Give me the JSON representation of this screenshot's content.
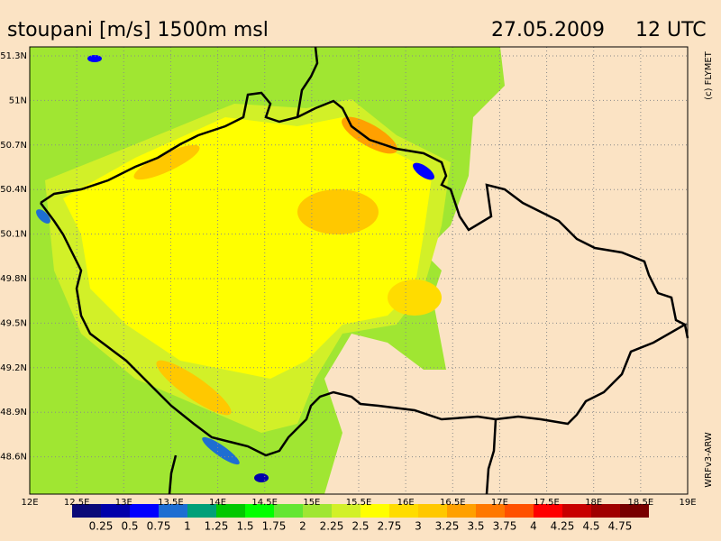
{
  "header": {
    "title": "stoupani [m/s] 1500m msl",
    "date": "27.05.2009",
    "time": "12 UTC",
    "copyright": "(c) FLYMET",
    "model": "WRFv3-ARW"
  },
  "lat_labels": [
    "51.3N",
    "51N",
    "50.7N",
    "50.4N",
    "50.1N",
    "49.8N",
    "49.5N",
    "49.2N",
    "48.9N",
    "48.6N"
  ],
  "lon_labels": [
    "12E",
    "12.5E",
    "13E",
    "13.5E",
    "14E",
    "14.5E",
    "15E",
    "15.5E",
    "16E",
    "16.5E",
    "17E",
    "17.5E",
    "18E",
    "18.5E",
    "19E"
  ],
  "colorbar": {
    "labels": [
      "0.25",
      "0.5",
      "0.75",
      "1",
      "1.25",
      "1.5",
      "1.75",
      "2",
      "2.25",
      "2.5",
      "2.75",
      "3",
      "3.25",
      "3.5",
      "3.75",
      "4",
      "4.25",
      "4.5",
      "4.75"
    ],
    "colors": [
      "#0a0a78",
      "#0000aa",
      "#0000ff",
      "#1e6ed2",
      "#00a078",
      "#00c800",
      "#00ff00",
      "#64e632",
      "#a0e632",
      "#d2f028",
      "#ffff00",
      "#ffdc00",
      "#ffc800",
      "#ffa000",
      "#ff7800",
      "#ff5000",
      "#ff0000",
      "#c80000",
      "#a00000",
      "#780000"
    ]
  }
}
